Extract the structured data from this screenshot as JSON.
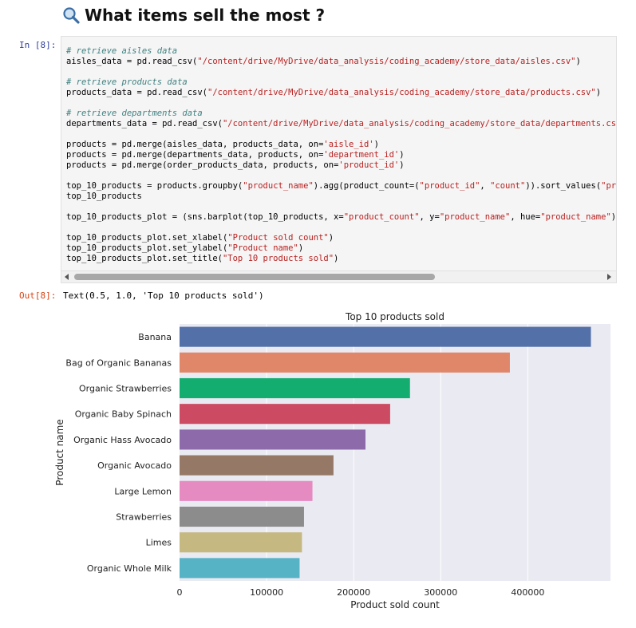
{
  "heading": {
    "icon": "magnifier-icon",
    "title": "What items sell the most ?"
  },
  "input_prompt": "In [8]:",
  "output_prompt": "Out[8]:",
  "code_lines": [
    [
      {
        "t": "# retrieve aisles data",
        "c": "com"
      }
    ],
    [
      {
        "t": "aisles_data = pd.read_csv(",
        "c": "kw"
      },
      {
        "t": "\"/content/drive/MyDrive/data_analysis/coding_academy/store_data/aisles.csv\"",
        "c": "str"
      },
      {
        "t": ")",
        "c": "kw"
      }
    ],
    [],
    [
      {
        "t": "# retrieve products data",
        "c": "com"
      }
    ],
    [
      {
        "t": "products_data = pd.read_csv(",
        "c": "kw"
      },
      {
        "t": "\"/content/drive/MyDrive/data_analysis/coding_academy/store_data/products.csv\"",
        "c": "str"
      },
      {
        "t": ")",
        "c": "kw"
      }
    ],
    [],
    [
      {
        "t": "# retrieve departments data",
        "c": "com"
      }
    ],
    [
      {
        "t": "departments_data = pd.read_csv(",
        "c": "kw"
      },
      {
        "t": "\"/content/drive/MyDrive/data_analysis/coding_academy/store_data/departments.csv\"",
        "c": "str"
      }
    ],
    [],
    [
      {
        "t": "products = pd.merge(aisles_data, products_data, on=",
        "c": "kw"
      },
      {
        "t": "'aisle_id'",
        "c": "str"
      },
      {
        "t": ")",
        "c": "kw"
      }
    ],
    [
      {
        "t": "products = pd.merge(departments_data, products, on=",
        "c": "kw"
      },
      {
        "t": "'department_id'",
        "c": "str"
      },
      {
        "t": ")",
        "c": "kw"
      }
    ],
    [
      {
        "t": "products = pd.merge(order_products_data, products, on=",
        "c": "kw"
      },
      {
        "t": "'product_id'",
        "c": "str"
      },
      {
        "t": ")",
        "c": "kw"
      }
    ],
    [],
    [
      {
        "t": "top_10_products = products.groupby(",
        "c": "kw"
      },
      {
        "t": "\"product_name\"",
        "c": "str"
      },
      {
        "t": ").agg(product_count=(",
        "c": "kw"
      },
      {
        "t": "\"product_id\"",
        "c": "str"
      },
      {
        "t": ", ",
        "c": "kw"
      },
      {
        "t": "\"count\"",
        "c": "str"
      },
      {
        "t": ")).sort_values(",
        "c": "kw"
      },
      {
        "t": "\"pro",
        "c": "str"
      }
    ],
    [
      {
        "t": "top_10_products",
        "c": "kw"
      }
    ],
    [],
    [
      {
        "t": "top_10_products_plot = (sns.barplot(top_10_products, x=",
        "c": "kw"
      },
      {
        "t": "\"product_count\"",
        "c": "str"
      },
      {
        "t": ", y=",
        "c": "kw"
      },
      {
        "t": "\"product_name\"",
        "c": "str"
      },
      {
        "t": ", hue=",
        "c": "kw"
      },
      {
        "t": "\"product_name\"",
        "c": "str"
      },
      {
        "t": "))",
        "c": "kw"
      }
    ],
    [],
    [
      {
        "t": "top_10_products_plot.set_xlabel(",
        "c": "kw"
      },
      {
        "t": "\"Product sold count\"",
        "c": "str"
      },
      {
        "t": ")",
        "c": "kw"
      }
    ],
    [
      {
        "t": "top_10_products_plot.set_ylabel(",
        "c": "kw"
      },
      {
        "t": "\"Product name\"",
        "c": "str"
      },
      {
        "t": ")",
        "c": "kw"
      }
    ],
    [
      {
        "t": "top_10_products_plot.set_title(",
        "c": "kw"
      },
      {
        "t": "\"Top 10 products sold\"",
        "c": "str"
      },
      {
        "t": ")",
        "c": "kw"
      }
    ]
  ],
  "output_text": "Text(0.5, 1.0, 'Top 10 products sold')",
  "chart_data": {
    "type": "bar",
    "orientation": "horizontal",
    "title": "Top 10 products sold",
    "xlabel": "Product sold count",
    "ylabel": "Product name",
    "categories": [
      "Banana",
      "Bag of Organic Bananas",
      "Organic Strawberries",
      "Organic Baby Spinach",
      "Organic Hass Avocado",
      "Organic Avocado",
      "Large Lemon",
      "Strawberries",
      "Limes",
      "Organic Whole Milk"
    ],
    "values": [
      472565,
      379450,
      264683,
      241921,
      213584,
      176815,
      152657,
      142951,
      140627,
      137905
    ],
    "colors": [
      "#5470a8",
      "#e0876a",
      "#12ad6f",
      "#cc4b62",
      "#8d6aaa",
      "#957866",
      "#e58bc2",
      "#8c8c8c",
      "#c5b880",
      "#56b3c6"
    ],
    "xlim": [
      0,
      495000
    ],
    "xticks": [
      0,
      100000,
      200000,
      300000,
      400000
    ],
    "xtick_labels": [
      "0",
      "100000",
      "200000",
      "300000",
      "400000"
    ],
    "grid": true,
    "background": "#eaeaf2"
  }
}
